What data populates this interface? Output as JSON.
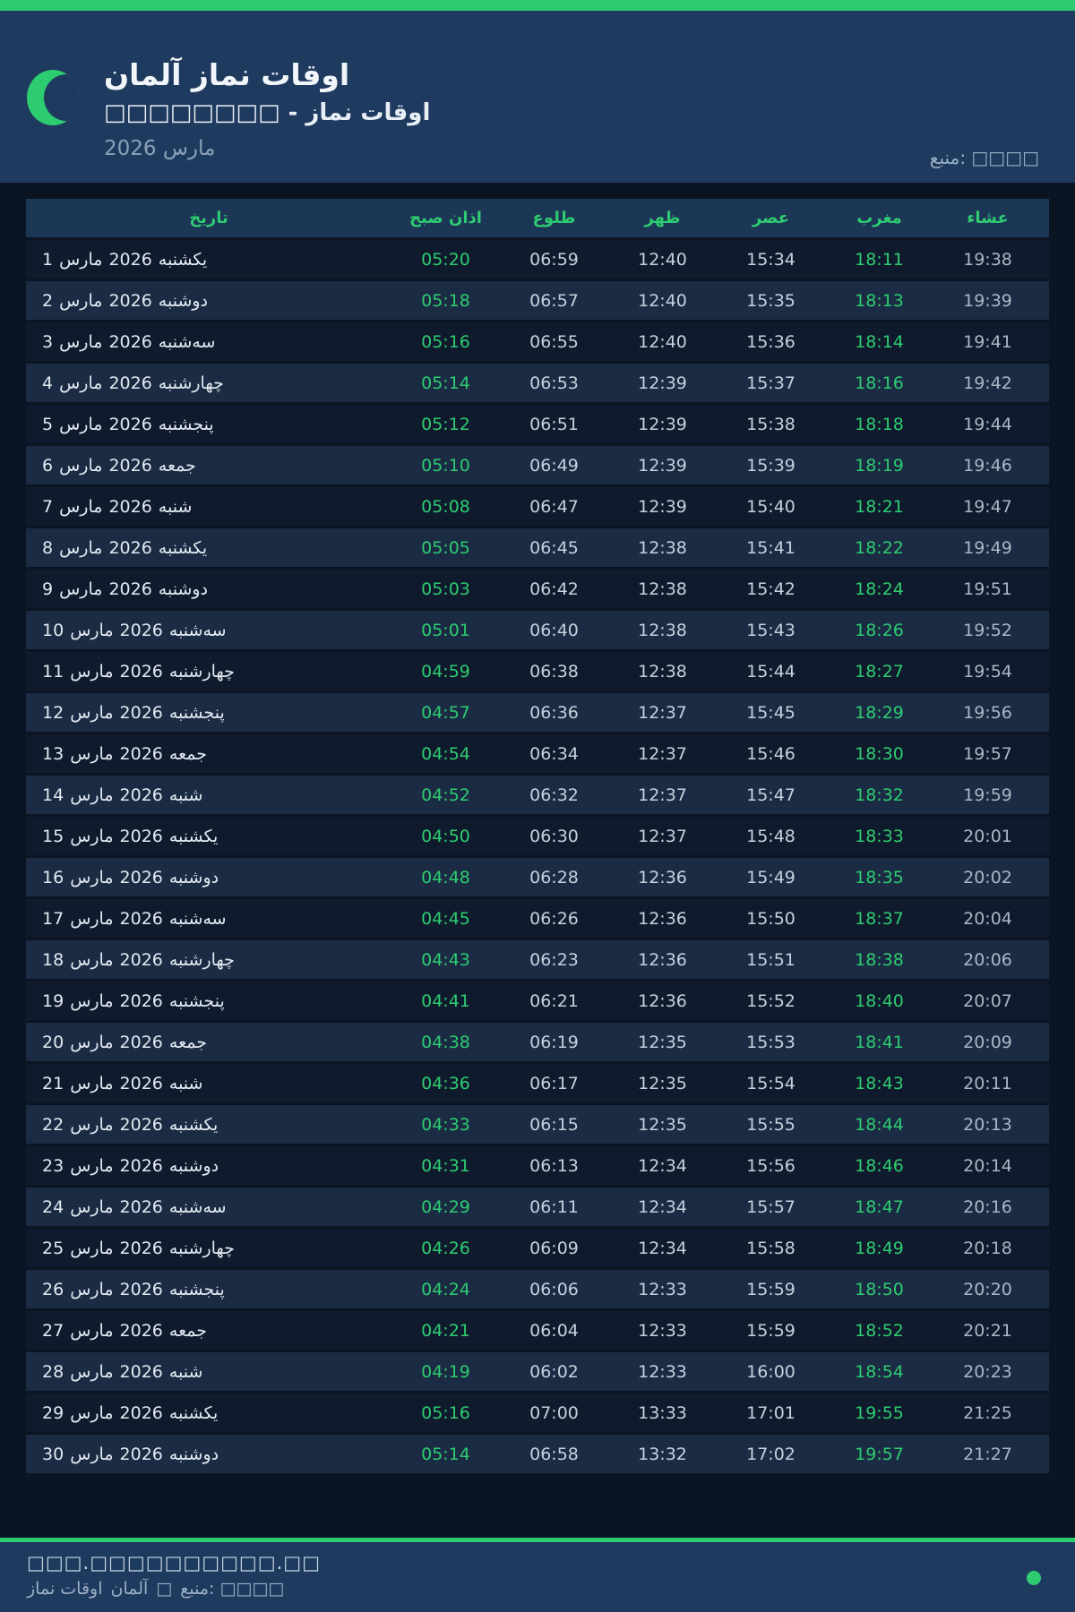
{
  "colors": {
    "accent": "#2ecc71",
    "header-bg": "#1e3a5f",
    "page-bg": "#0a1422",
    "row-odd": "#0f1a2c",
    "row-even": "#1a2b43",
    "thead-bg": "#1c3756"
  },
  "header": {
    "title": "اوقات نماز آلمان",
    "subtitle": "اوقات نماز - □□□□□□□□",
    "month_year": "مارس 2026",
    "source": "منبع: □□□□"
  },
  "table": {
    "month": "مارس",
    "year": "2026",
    "headers": [
      "تاریخ",
      "اذان صبح",
      "طلوع",
      "ظهر",
      "عصر",
      "مغرب",
      "عشاء"
    ],
    "rows": [
      {
        "day": "1",
        "weekday": "یکشنبه",
        "fajr": "05:20",
        "sunrise": "06:59",
        "dhuhr": "12:40",
        "asr": "15:34",
        "maghrib": "18:11",
        "isha": "19:38"
      },
      {
        "day": "2",
        "weekday": "دوشنبه",
        "fajr": "05:18",
        "sunrise": "06:57",
        "dhuhr": "12:40",
        "asr": "15:35",
        "maghrib": "18:13",
        "isha": "19:39"
      },
      {
        "day": "3",
        "weekday": "سه‌شنبه",
        "fajr": "05:16",
        "sunrise": "06:55",
        "dhuhr": "12:40",
        "asr": "15:36",
        "maghrib": "18:14",
        "isha": "19:41"
      },
      {
        "day": "4",
        "weekday": "چهارشنبه",
        "fajr": "05:14",
        "sunrise": "06:53",
        "dhuhr": "12:39",
        "asr": "15:37",
        "maghrib": "18:16",
        "isha": "19:42"
      },
      {
        "day": "5",
        "weekday": "پنجشنبه",
        "fajr": "05:12",
        "sunrise": "06:51",
        "dhuhr": "12:39",
        "asr": "15:38",
        "maghrib": "18:18",
        "isha": "19:44"
      },
      {
        "day": "6",
        "weekday": "جمعه",
        "fajr": "05:10",
        "sunrise": "06:49",
        "dhuhr": "12:39",
        "asr": "15:39",
        "maghrib": "18:19",
        "isha": "19:46"
      },
      {
        "day": "7",
        "weekday": "شنبه",
        "fajr": "05:08",
        "sunrise": "06:47",
        "dhuhr": "12:39",
        "asr": "15:40",
        "maghrib": "18:21",
        "isha": "19:47"
      },
      {
        "day": "8",
        "weekday": "یکشنبه",
        "fajr": "05:05",
        "sunrise": "06:45",
        "dhuhr": "12:38",
        "asr": "15:41",
        "maghrib": "18:22",
        "isha": "19:49"
      },
      {
        "day": "9",
        "weekday": "دوشنبه",
        "fajr": "05:03",
        "sunrise": "06:42",
        "dhuhr": "12:38",
        "asr": "15:42",
        "maghrib": "18:24",
        "isha": "19:51"
      },
      {
        "day": "10",
        "weekday": "سه‌شنبه",
        "fajr": "05:01",
        "sunrise": "06:40",
        "dhuhr": "12:38",
        "asr": "15:43",
        "maghrib": "18:26",
        "isha": "19:52"
      },
      {
        "day": "11",
        "weekday": "چهارشنبه",
        "fajr": "04:59",
        "sunrise": "06:38",
        "dhuhr": "12:38",
        "asr": "15:44",
        "maghrib": "18:27",
        "isha": "19:54"
      },
      {
        "day": "12",
        "weekday": "پنجشنبه",
        "fajr": "04:57",
        "sunrise": "06:36",
        "dhuhr": "12:37",
        "asr": "15:45",
        "maghrib": "18:29",
        "isha": "19:56"
      },
      {
        "day": "13",
        "weekday": "جمعه",
        "fajr": "04:54",
        "sunrise": "06:34",
        "dhuhr": "12:37",
        "asr": "15:46",
        "maghrib": "18:30",
        "isha": "19:57"
      },
      {
        "day": "14",
        "weekday": "شنبه",
        "fajr": "04:52",
        "sunrise": "06:32",
        "dhuhr": "12:37",
        "asr": "15:47",
        "maghrib": "18:32",
        "isha": "19:59"
      },
      {
        "day": "15",
        "weekday": "یکشنبه",
        "fajr": "04:50",
        "sunrise": "06:30",
        "dhuhr": "12:37",
        "asr": "15:48",
        "maghrib": "18:33",
        "isha": "20:01"
      },
      {
        "day": "16",
        "weekday": "دوشنبه",
        "fajr": "04:48",
        "sunrise": "06:28",
        "dhuhr": "12:36",
        "asr": "15:49",
        "maghrib": "18:35",
        "isha": "20:02"
      },
      {
        "day": "17",
        "weekday": "سه‌شنبه",
        "fajr": "04:45",
        "sunrise": "06:26",
        "dhuhr": "12:36",
        "asr": "15:50",
        "maghrib": "18:37",
        "isha": "20:04"
      },
      {
        "day": "18",
        "weekday": "چهارشنبه",
        "fajr": "04:43",
        "sunrise": "06:23",
        "dhuhr": "12:36",
        "asr": "15:51",
        "maghrib": "18:38",
        "isha": "20:06"
      },
      {
        "day": "19",
        "weekday": "پنجشنبه",
        "fajr": "04:41",
        "sunrise": "06:21",
        "dhuhr": "12:36",
        "asr": "15:52",
        "maghrib": "18:40",
        "isha": "20:07"
      },
      {
        "day": "20",
        "weekday": "جمعه",
        "fajr": "04:38",
        "sunrise": "06:19",
        "dhuhr": "12:35",
        "asr": "15:53",
        "maghrib": "18:41",
        "isha": "20:09"
      },
      {
        "day": "21",
        "weekday": "شنبه",
        "fajr": "04:36",
        "sunrise": "06:17",
        "dhuhr": "12:35",
        "asr": "15:54",
        "maghrib": "18:43",
        "isha": "20:11"
      },
      {
        "day": "22",
        "weekday": "یکشنبه",
        "fajr": "04:33",
        "sunrise": "06:15",
        "dhuhr": "12:35",
        "asr": "15:55",
        "maghrib": "18:44",
        "isha": "20:13"
      },
      {
        "day": "23",
        "weekday": "دوشنبه",
        "fajr": "04:31",
        "sunrise": "06:13",
        "dhuhr": "12:34",
        "asr": "15:56",
        "maghrib": "18:46",
        "isha": "20:14"
      },
      {
        "day": "24",
        "weekday": "سه‌شنبه",
        "fajr": "04:29",
        "sunrise": "06:11",
        "dhuhr": "12:34",
        "asr": "15:57",
        "maghrib": "18:47",
        "isha": "20:16"
      },
      {
        "day": "25",
        "weekday": "چهارشنبه",
        "fajr": "04:26",
        "sunrise": "06:09",
        "dhuhr": "12:34",
        "asr": "15:58",
        "maghrib": "18:49",
        "isha": "20:18"
      },
      {
        "day": "26",
        "weekday": "پنجشنبه",
        "fajr": "04:24",
        "sunrise": "06:06",
        "dhuhr": "12:33",
        "asr": "15:59",
        "maghrib": "18:50",
        "isha": "20:20"
      },
      {
        "day": "27",
        "weekday": "جمعه",
        "fajr": "04:21",
        "sunrise": "06:04",
        "dhuhr": "12:33",
        "asr": "15:59",
        "maghrib": "18:52",
        "isha": "20:21"
      },
      {
        "day": "28",
        "weekday": "شنبه",
        "fajr": "04:19",
        "sunrise": "06:02",
        "dhuhr": "12:33",
        "asr": "16:00",
        "maghrib": "18:54",
        "isha": "20:23"
      },
      {
        "day": "29",
        "weekday": "یکشنبه",
        "fajr": "05:16",
        "sunrise": "07:00",
        "dhuhr": "13:33",
        "asr": "17:01",
        "maghrib": "19:55",
        "isha": "21:25"
      },
      {
        "day": "30",
        "weekday": "دوشنبه",
        "fajr": "05:14",
        "sunrise": "06:58",
        "dhuhr": "13:32",
        "asr": "17:02",
        "maghrib": "19:57",
        "isha": "21:27"
      }
    ]
  },
  "footer": {
    "url": "□□□.□□□□□□□□□□.□□",
    "credit_parts": [
      "اوقات نماز",
      "آلمان",
      "□",
      "منبع: □□□□"
    ]
  }
}
